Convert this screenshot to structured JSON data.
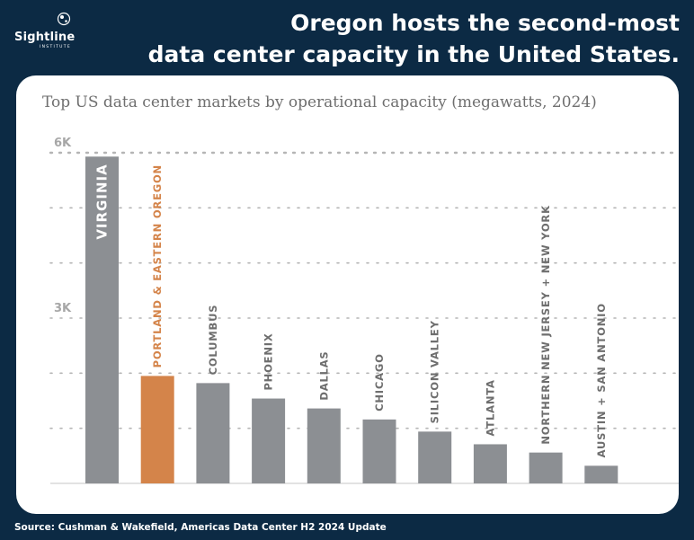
{
  "brand": {
    "name": "Sightline",
    "tagline": "INSTITUTE"
  },
  "headline": {
    "line1": "Oregon hosts the second-most",
    "line2": "data center capacity in the United States."
  },
  "source": "Source: Cushman & Wakefield, Americas Data Center H2 2024 Update",
  "colors": {
    "background": "#0c2a44",
    "bar": "#8c8f93",
    "highlight": "#d4844a",
    "grid": "#b5b5b5",
    "label": "#6e6e6e"
  },
  "chart_data": {
    "type": "bar",
    "title": "Top US data center markets by operational capacity (megawatts, 2024)",
    "xlabel": "",
    "ylabel": "",
    "ylim": [
      0,
      6000
    ],
    "yticks": [
      {
        "value": 3000,
        "label": "3K"
      },
      {
        "value": 6000,
        "label": "6K"
      }
    ],
    "grid": true,
    "categories": [
      "Virginia",
      "Portland & Eastern Oregon",
      "Columbus",
      "Phoenix",
      "Dallas",
      "Chicago",
      "Silicon Valley",
      "Atlanta",
      "Northern New Jersey + New York",
      "Austin + San Antonio"
    ],
    "values": [
      5930,
      1950,
      1820,
      1540,
      1360,
      1160,
      940,
      710,
      560,
      320
    ],
    "highlight_index": 1
  }
}
